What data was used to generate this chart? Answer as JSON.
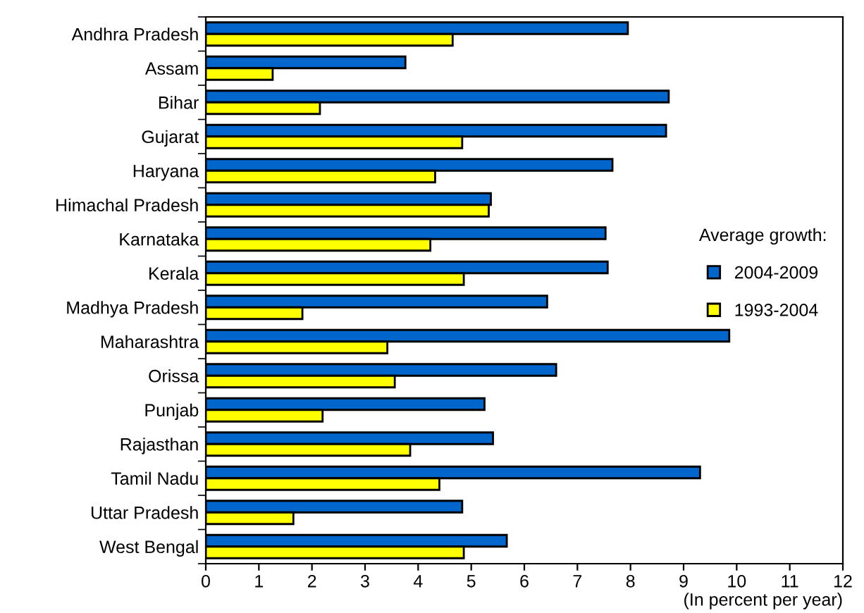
{
  "chart_data": {
    "type": "bar",
    "orientation": "horizontal",
    "xlabel": "(In percent per year)",
    "legend_title": "Average growth:",
    "legend": "right",
    "grid": false,
    "categories": [
      "Andhra Pradesh",
      "Assam",
      "Bihar",
      "Gujarat",
      "Haryana",
      "Himachal Pradesh",
      "Karnataka",
      "Kerala",
      "Madhya Pradesh",
      "Maharashtra",
      "Orissa",
      "Punjab",
      "Rajasthan",
      "Tamil Nadu",
      "Uttar Pradesh",
      "West Bengal"
    ],
    "series": [
      {
        "name": "2004-2009",
        "color": "#0066cc",
        "values": [
          7.95,
          3.76,
          8.72,
          8.67,
          7.66,
          5.37,
          7.53,
          7.57,
          6.43,
          9.86,
          6.6,
          5.25,
          5.41,
          9.31,
          4.83,
          5.67
        ]
      },
      {
        "name": "1993-2004",
        "color": "#ffff00",
        "values": [
          4.65,
          1.26,
          2.15,
          4.83,
          4.32,
          5.33,
          4.23,
          4.86,
          1.82,
          3.42,
          3.56,
          2.2,
          3.85,
          4.4,
          1.65,
          4.86
        ]
      }
    ],
    "xlim": [
      0,
      12
    ],
    "xticks": [
      0,
      1,
      2,
      3,
      4,
      5,
      6,
      7,
      8,
      9,
      10,
      11,
      12
    ]
  }
}
